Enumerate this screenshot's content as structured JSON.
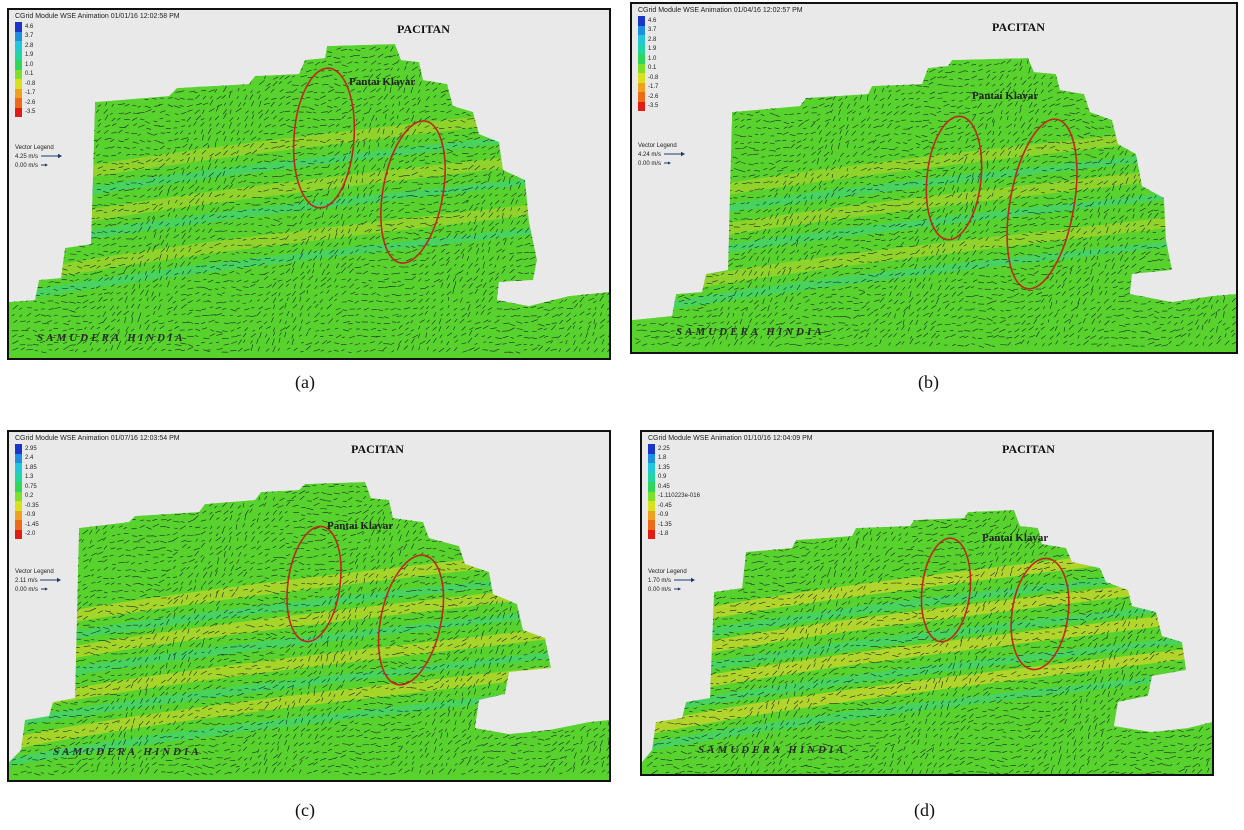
{
  "panels": [
    {
      "caption": "(a)",
      "header": "CGrid Module WSE Animation 01/01/16 12:02:58 PM",
      "place_label": "PACITAN",
      "beach_label": "Pantai Klayar",
      "sea_label": "SAMUDERA HINDIA",
      "legend_values": [
        "4.6",
        "3.7",
        "2.8",
        "1.9",
        "1.0",
        "0.1",
        "-0.8",
        "-1.7",
        "-2.6",
        "-3.5"
      ],
      "vector_legend_title": "Vector Legend",
      "vector_max": "4.25 m/s",
      "vector_min": "0.00 m/s"
    },
    {
      "caption": "(b)",
      "header": "CGrid Module WSE Animation 01/04/16 12:02:57 PM",
      "place_label": "PACITAN",
      "beach_label": "Pantai Klayar",
      "sea_label": "SAMUDERA HINDIA",
      "legend_values": [
        "4.6",
        "3.7",
        "2.8",
        "1.9",
        "1.0",
        "0.1",
        "-0.8",
        "-1.7",
        "-2.6",
        "-3.5"
      ],
      "vector_legend_title": "Vector Legend",
      "vector_max": "4.24 m/s",
      "vector_min": "0.00 m/s"
    },
    {
      "caption": "(c)",
      "header": "CGrid Module WSE Animation 01/07/16 12:03:54 PM",
      "place_label": "PACITAN",
      "beach_label": "Pantai Klayar",
      "sea_label": "SAMUDERA HINDIA",
      "legend_values": [
        "2.95",
        "2.4",
        "1.85",
        "1.3",
        "0.75",
        "0.2",
        "-0.35",
        "-0.9",
        "-1.45",
        "-2.0"
      ],
      "vector_legend_title": "Vector Legend",
      "vector_max": "2.11 m/s",
      "vector_min": "0.00 m/s"
    },
    {
      "caption": "(d)",
      "header": "CGrid Module WSE Animation 01/10/16 12:04:09 PM",
      "place_label": "PACITAN",
      "beach_label": "Pantai Klayar",
      "sea_label": "SAMUDERA HINDIA",
      "legend_values": [
        "2.25",
        "1.8",
        "1.35",
        "0.9",
        "0.45",
        "-1.110223e-016",
        "-0.45",
        "-0.9",
        "-1.35",
        "-1.8"
      ],
      "vector_legend_title": "Vector Legend",
      "vector_max": "1.70 m/s",
      "vector_min": "0.00 m/s"
    }
  ],
  "legend_colors": [
    "#1a36c8",
    "#1f8fe0",
    "#22c8d8",
    "#22d6a0",
    "#2fd65a",
    "#7ee02a",
    "#d8e020",
    "#f0a020",
    "#ec6a18",
    "#e01c14"
  ],
  "map_colors": {
    "background": "#e9e9e9",
    "domain_green": "#58d22c",
    "band_yellow": "#c8d62a",
    "band_cyan": "#34d49a",
    "vectors": "#1a2a2a",
    "ellipse": "#c0281c"
  }
}
